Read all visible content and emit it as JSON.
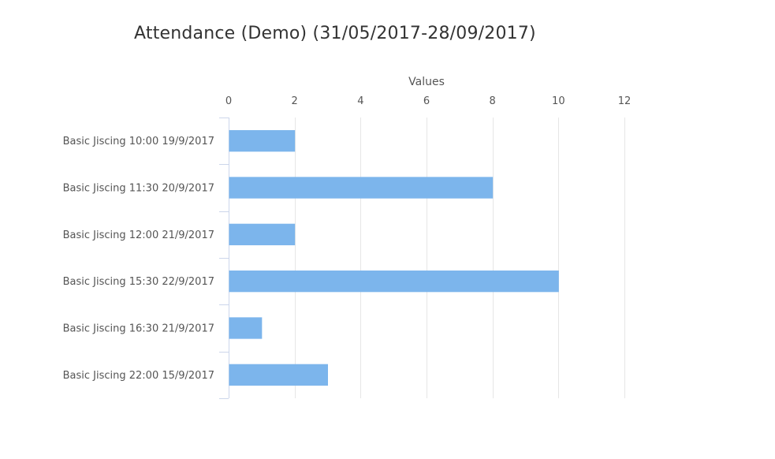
{
  "chart_data": {
    "type": "bar",
    "orientation": "horizontal",
    "title": "Attendance (Demo) (31/05/2017-28/09/2017)",
    "xlabel": "Values",
    "ylabel": "",
    "xlim": [
      0,
      12
    ],
    "x_ticks": [
      0,
      2,
      4,
      6,
      8,
      10,
      12
    ],
    "categories": [
      "Basic Jiscing 10:00 19/9/2017",
      "Basic Jiscing 11:30 20/9/2017",
      "Basic Jiscing 12:00 21/9/2017",
      "Basic Jiscing 15:30 22/9/2017",
      "Basic Jiscing 16:30 21/9/2017",
      "Basic Jiscing 22:00 15/9/2017"
    ],
    "values": [
      2,
      8,
      2,
      10,
      1,
      3
    ],
    "bar_color": "#7cb5ec",
    "grid": true,
    "legend": "none"
  }
}
